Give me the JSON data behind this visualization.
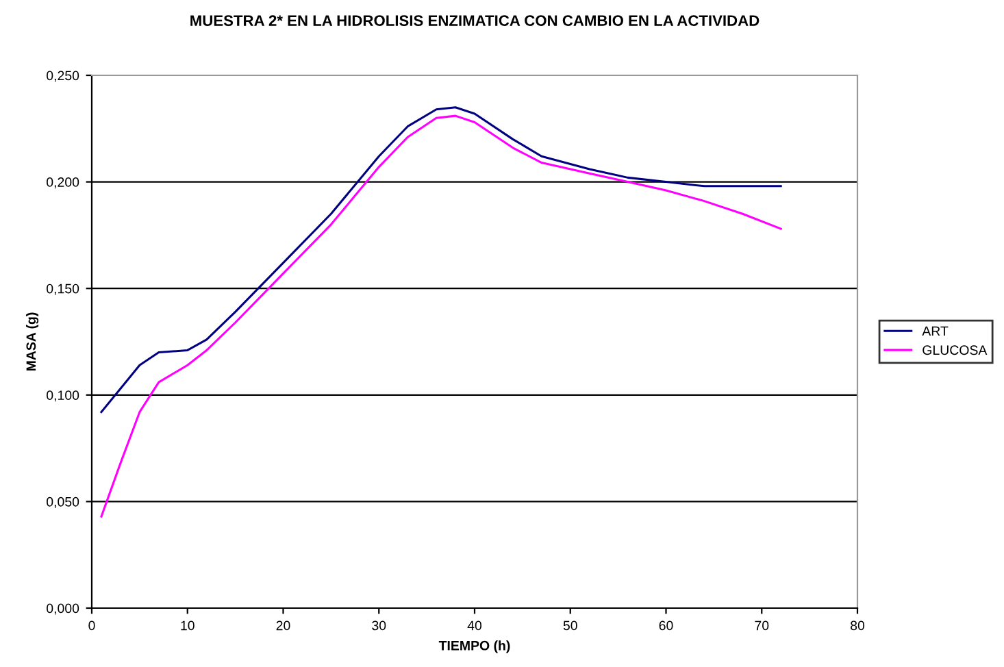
{
  "chart_data": {
    "type": "line",
    "title": "MUESTRA 2* EN LA HIDROLISIS ENZIMATICA CON CAMBIO EN LA ACTIVIDAD",
    "xlabel": "TIEMPO (h)",
    "ylabel": "MASA (g)",
    "x": [
      1,
      3,
      5,
      7,
      10,
      12,
      15,
      20,
      25,
      30,
      33,
      36,
      38,
      40,
      44,
      47,
      52,
      56,
      60,
      64,
      68,
      72
    ],
    "series": [
      {
        "name": "ART",
        "color": "#000080",
        "values": [
          0.092,
          0.103,
          0.114,
          0.12,
          0.121,
          0.126,
          0.139,
          0.162,
          0.185,
          0.212,
          0.226,
          0.234,
          0.235,
          0.232,
          0.22,
          0.212,
          0.206,
          0.202,
          0.2,
          0.198,
          0.198,
          0.198
        ]
      },
      {
        "name": "GLUCOSA",
        "color": "#ff00ff",
        "values": [
          0.043,
          0.068,
          0.092,
          0.106,
          0.114,
          0.121,
          0.134,
          0.157,
          0.18,
          0.207,
          0.221,
          0.23,
          0.231,
          0.228,
          0.216,
          0.209,
          0.204,
          0.2,
          0.196,
          0.191,
          0.185,
          0.178
        ]
      }
    ],
    "xlim": [
      0,
      80
    ],
    "xticks": [
      0,
      10,
      20,
      30,
      40,
      50,
      60,
      70,
      80
    ],
    "ylim": [
      0,
      0.25
    ],
    "yticks": [
      {
        "value": 0,
        "label": "0,000"
      },
      {
        "value": 0.05,
        "label": "0,050"
      },
      {
        "value": 0.1,
        "label": "0,100"
      },
      {
        "value": 0.15,
        "label": "0,150"
      },
      {
        "value": 0.2,
        "label": "0,200"
      },
      {
        "value": 0.25,
        "label": "0,250"
      }
    ],
    "grid": "y",
    "legend": "right",
    "marker": "none",
    "line_style": "solid"
  }
}
